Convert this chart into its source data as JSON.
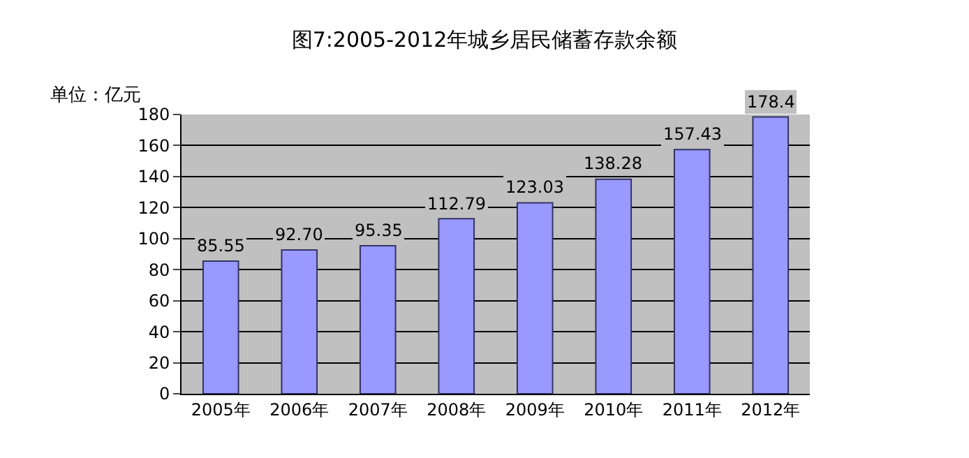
{
  "chart_data": {
    "type": "bar",
    "title": "图7:2005-2012年城乡居民储蓄存款余额",
    "ylabel": "单位：亿元",
    "categories": [
      "2005年",
      "2006年",
      "2007年",
      "2008年",
      "2009年",
      "2010年",
      "2011年",
      "2012年"
    ],
    "values": [
      85.55,
      92.7,
      95.35,
      112.79,
      123.03,
      138.28,
      157.43,
      178.4
    ],
    "value_labels": [
      "85.55",
      "92.70",
      "95.35",
      "112.79",
      "123.03",
      "138.28",
      "157.43",
      "178.4"
    ],
    "color": "#9999ff",
    "ylim": [
      0,
      180
    ],
    "yticks": [
      0,
      20,
      40,
      60,
      80,
      100,
      120,
      140,
      160,
      180
    ],
    "grid": "y"
  }
}
